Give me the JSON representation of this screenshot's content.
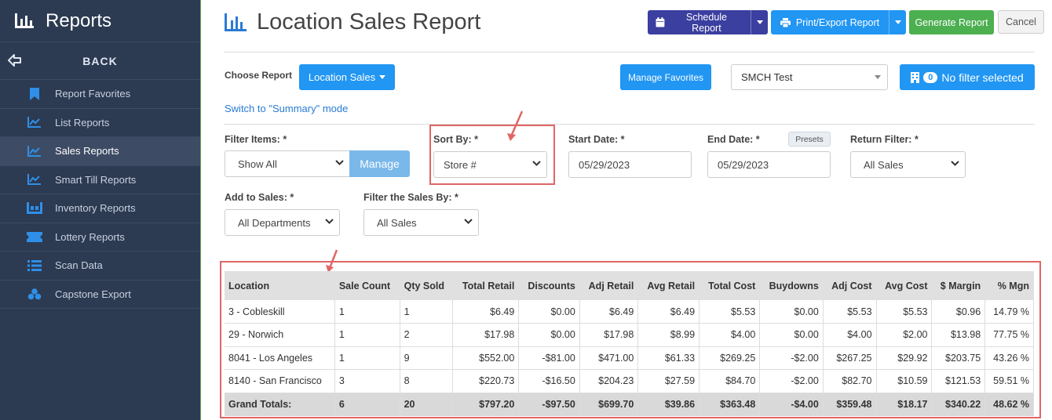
{
  "sidebar": {
    "title": "Reports",
    "back": "BACK",
    "items": [
      {
        "label": "Report Favorites",
        "icon": "bookmark-icon"
      },
      {
        "label": "List Reports",
        "icon": "line-chart-icon"
      },
      {
        "label": "Sales Reports",
        "icon": "line-chart-icon",
        "active": true
      },
      {
        "label": "Smart Till Reports",
        "icon": "line-chart-icon"
      },
      {
        "label": "Inventory Reports",
        "icon": "inventory-icon"
      },
      {
        "label": "Lottery Reports",
        "icon": "ticket-icon"
      },
      {
        "label": "Scan Data",
        "icon": "list-icon"
      },
      {
        "label": "Capstone Export",
        "icon": "cubes-icon"
      }
    ]
  },
  "header": {
    "title": "Location Sales Report",
    "schedule": "Schedule Report",
    "print": "Print/Export Report",
    "generate": "Generate Report",
    "cancel": "Cancel"
  },
  "choose": {
    "label": "Choose Report",
    "report": "Location Sales",
    "switch_link": "Switch to \"Summary\" mode",
    "manage_favorites": "Manage Favorites",
    "store": "SMCH Test",
    "filter_count": "0",
    "filter_text": "No filter selected"
  },
  "filters": {
    "filter_items_label": "Filter Items: *",
    "filter_items_value": "Show All",
    "manage": "Manage",
    "sort_by_label": "Sort By: *",
    "sort_by_value": "Store #",
    "start_date_label": "Start Date: *",
    "start_date_value": "05/29/2023",
    "end_date_label": "End Date: *",
    "end_date_value": "05/29/2023",
    "presets": "Presets",
    "return_filter_label": "Return Filter: *",
    "return_filter_value": "All Sales",
    "add_to_sales_label": "Add to Sales: *",
    "add_to_sales_value": "All Departments",
    "filter_sales_by_label": "Filter the Sales By: *",
    "filter_sales_by_value": "All Sales"
  },
  "table": {
    "columns": [
      "Location",
      "Sale Count",
      "Qty Sold",
      "Total Retail",
      "Discounts",
      "Adj Retail",
      "Avg Retail",
      "Total Cost",
      "Buydowns",
      "Adj Cost",
      "Avg Cost",
      "$ Margin",
      "% Mgn"
    ],
    "rows": [
      [
        "3 - Cobleskill",
        "1",
        "1",
        "$6.49",
        "$0.00",
        "$6.49",
        "$6.49",
        "$5.53",
        "$0.00",
        "$5.53",
        "$5.53",
        "$0.96",
        "14.79 %"
      ],
      [
        "29 - Norwich",
        "1",
        "2",
        "$17.98",
        "$0.00",
        "$17.98",
        "$8.99",
        "$4.00",
        "$0.00",
        "$4.00",
        "$2.00",
        "$13.98",
        "77.75 %"
      ],
      [
        "8041 - Los Angeles",
        "1",
        "9",
        "$552.00",
        "-$81.00",
        "$471.00",
        "$61.33",
        "$269.25",
        "-$2.00",
        "$267.25",
        "$29.92",
        "$203.75",
        "43.26 %"
      ],
      [
        "8140 - San Francisco",
        "3",
        "8",
        "$220.73",
        "-$16.50",
        "$204.23",
        "$27.59",
        "$84.70",
        "-$2.00",
        "$82.70",
        "$10.59",
        "$121.53",
        "59.51 %"
      ]
    ],
    "totals": [
      "Grand Totals:",
      "6",
      "20",
      "$797.20",
      "-$97.50",
      "$699.70",
      "$39.86",
      "$363.48",
      "-$4.00",
      "$359.48",
      "$18.17",
      "$340.22",
      "48.62 %"
    ]
  },
  "colors": {
    "sidebar_bg": "#2c3a52",
    "navy_button": "#3b3f9f",
    "blue_button": "#2196f3",
    "green_button": "#4caf50",
    "highlight": "#e06666"
  }
}
